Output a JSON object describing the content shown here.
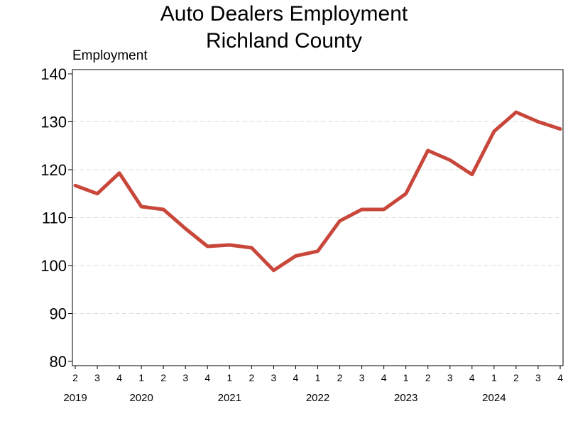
{
  "chart_data": {
    "type": "line",
    "title": "Auto Dealers Employment",
    "subtitle": "Richland County",
    "ylabel": "Employment",
    "xlabel": "",
    "ylim": [
      80,
      140
    ],
    "yticks": [
      80,
      90,
      100,
      110,
      120,
      130,
      140
    ],
    "grid": "horizontal dashed",
    "legend": "none",
    "line_color": "#c8473a",
    "x": [
      "2019 Q2",
      "2019 Q3",
      "2019 Q4",
      "2020 Q1",
      "2020 Q2",
      "2020 Q3",
      "2020 Q4",
      "2021 Q1",
      "2021 Q2",
      "2021 Q3",
      "2021 Q4",
      "2022 Q1",
      "2022 Q2",
      "2022 Q3",
      "2022 Q4",
      "2023 Q1",
      "2023 Q2",
      "2023 Q3",
      "2023 Q4",
      "2024 Q1",
      "2024 Q2",
      "2024 Q3",
      "2024 Q4"
    ],
    "quarter_labels": [
      "2",
      "3",
      "4",
      "1",
      "2",
      "3",
      "4",
      "1",
      "2",
      "3",
      "4",
      "1",
      "2",
      "3",
      "4",
      "1",
      "2",
      "3",
      "4",
      "1",
      "2",
      "3",
      "4"
    ],
    "year_labels": [
      {
        "label": "2019",
        "index": 0
      },
      {
        "label": "2020",
        "index": 3
      },
      {
        "label": "2021",
        "index": 7
      },
      {
        "label": "2022",
        "index": 11
      },
      {
        "label": "2023",
        "index": 15
      },
      {
        "label": "2024",
        "index": 19
      }
    ],
    "values": [
      116.7,
      115,
      119.3,
      112.3,
      111.7,
      107.7,
      104,
      104.3,
      103.7,
      99,
      102,
      103,
      109.3,
      111.7,
      111.7,
      115,
      124,
      122,
      119,
      128,
      132,
      130,
      128.5
    ]
  }
}
